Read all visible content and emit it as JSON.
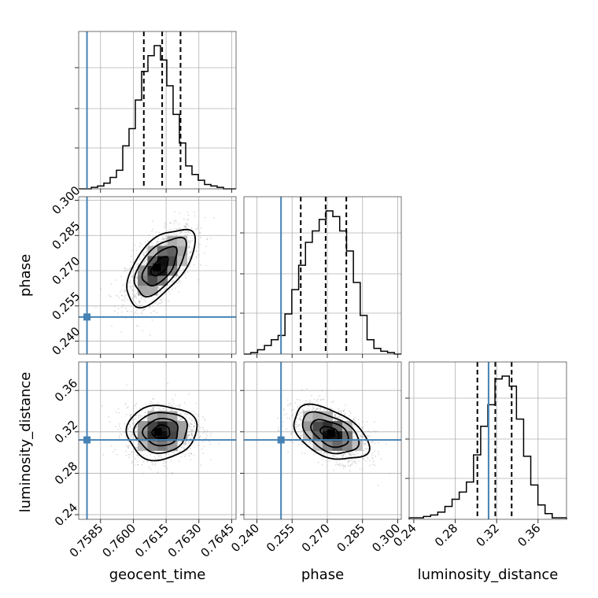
{
  "chart_data": {
    "type": "corner",
    "parameters": [
      {
        "key": "geocent_time",
        "label": "geocent_time",
        "range": [
          0.7575,
          0.7647
        ],
        "ticks": [
          "0.7585",
          "0.7600",
          "0.7615",
          "0.7630",
          "0.7645"
        ],
        "tick_values": [
          0.7585,
          0.76,
          0.7615,
          0.763,
          0.7645
        ],
        "truth": 0.75788,
        "quantiles": [
          0.76048,
          0.76132,
          0.76216
        ],
        "hist": [
          0.0,
          0.0,
          0.01,
          0.02,
          0.04,
          0.08,
          0.13,
          0.3,
          0.42,
          0.62,
          0.82,
          0.93,
          1.0,
          0.9,
          0.72,
          0.52,
          0.32,
          0.16,
          0.1,
          0.06,
          0.03,
          0.02,
          0.01,
          0.0,
          0.0
        ]
      },
      {
        "key": "phase",
        "label": "phase",
        "range": [
          0.2345,
          0.3015
        ],
        "ticks": [
          "0.240",
          "0.255",
          "0.270",
          "0.285",
          "0.300"
        ],
        "tick_values": [
          0.24,
          0.255,
          0.27,
          0.285,
          0.3
        ],
        "truth": 0.2503,
        "quantiles": [
          0.2587,
          0.2693,
          0.2781
        ],
        "hist": [
          0.0,
          0.01,
          0.03,
          0.06,
          0.1,
          0.13,
          0.28,
          0.45,
          0.62,
          0.78,
          0.86,
          0.94,
          1.0,
          0.96,
          0.86,
          0.72,
          0.5,
          0.27,
          0.1,
          0.04,
          0.02,
          0.01,
          0.0
        ]
      },
      {
        "key": "luminosity_distance",
        "label": "luminosity_distance",
        "range": [
          0.2355,
          0.3875
        ],
        "ticks": [
          "0.24",
          "0.28",
          "0.32",
          "0.36"
        ],
        "tick_values": [
          0.24,
          0.28,
          0.32,
          0.36
        ],
        "truth": 0.3122,
        "quantiles": [
          0.3014,
          0.3187,
          0.3345
        ],
        "hist": [
          0.01,
          0.01,
          0.02,
          0.03,
          0.05,
          0.09,
          0.14,
          0.19,
          0.26,
          0.45,
          0.65,
          0.8,
          0.98,
          1.0,
          0.93,
          0.7,
          0.44,
          0.24,
          0.1,
          0.04,
          0.01,
          0.01
        ]
      }
    ],
    "pairs": [
      {
        "x": "geocent_time",
        "y": "phase",
        "mean": [
          0.76122,
          0.2718
        ],
        "sd": [
          0.00078,
          0.0082
        ],
        "rho": 0.6,
        "peak": [
          0.76108,
          0.2714
        ]
      },
      {
        "x": "geocent_time",
        "y": "luminosity_distance",
        "mean": [
          0.76128,
          0.3198
        ],
        "sd": [
          0.0008,
          0.0131
        ],
        "rho": 0.05,
        "peak": [
          0.76112,
          0.32
        ]
      },
      {
        "x": "phase",
        "y": "luminosity_distance",
        "mean": [
          0.2712,
          0.3186
        ],
        "sd": [
          0.008,
          0.0131
        ],
        "rho": -0.45,
        "peak": [
          0.2716,
          0.3187
        ]
      }
    ],
    "contour_levels_sigma": [
      0.5,
      1.0,
      1.5,
      2.0
    ],
    "truth_color": "#4682b4",
    "grid": true
  }
}
